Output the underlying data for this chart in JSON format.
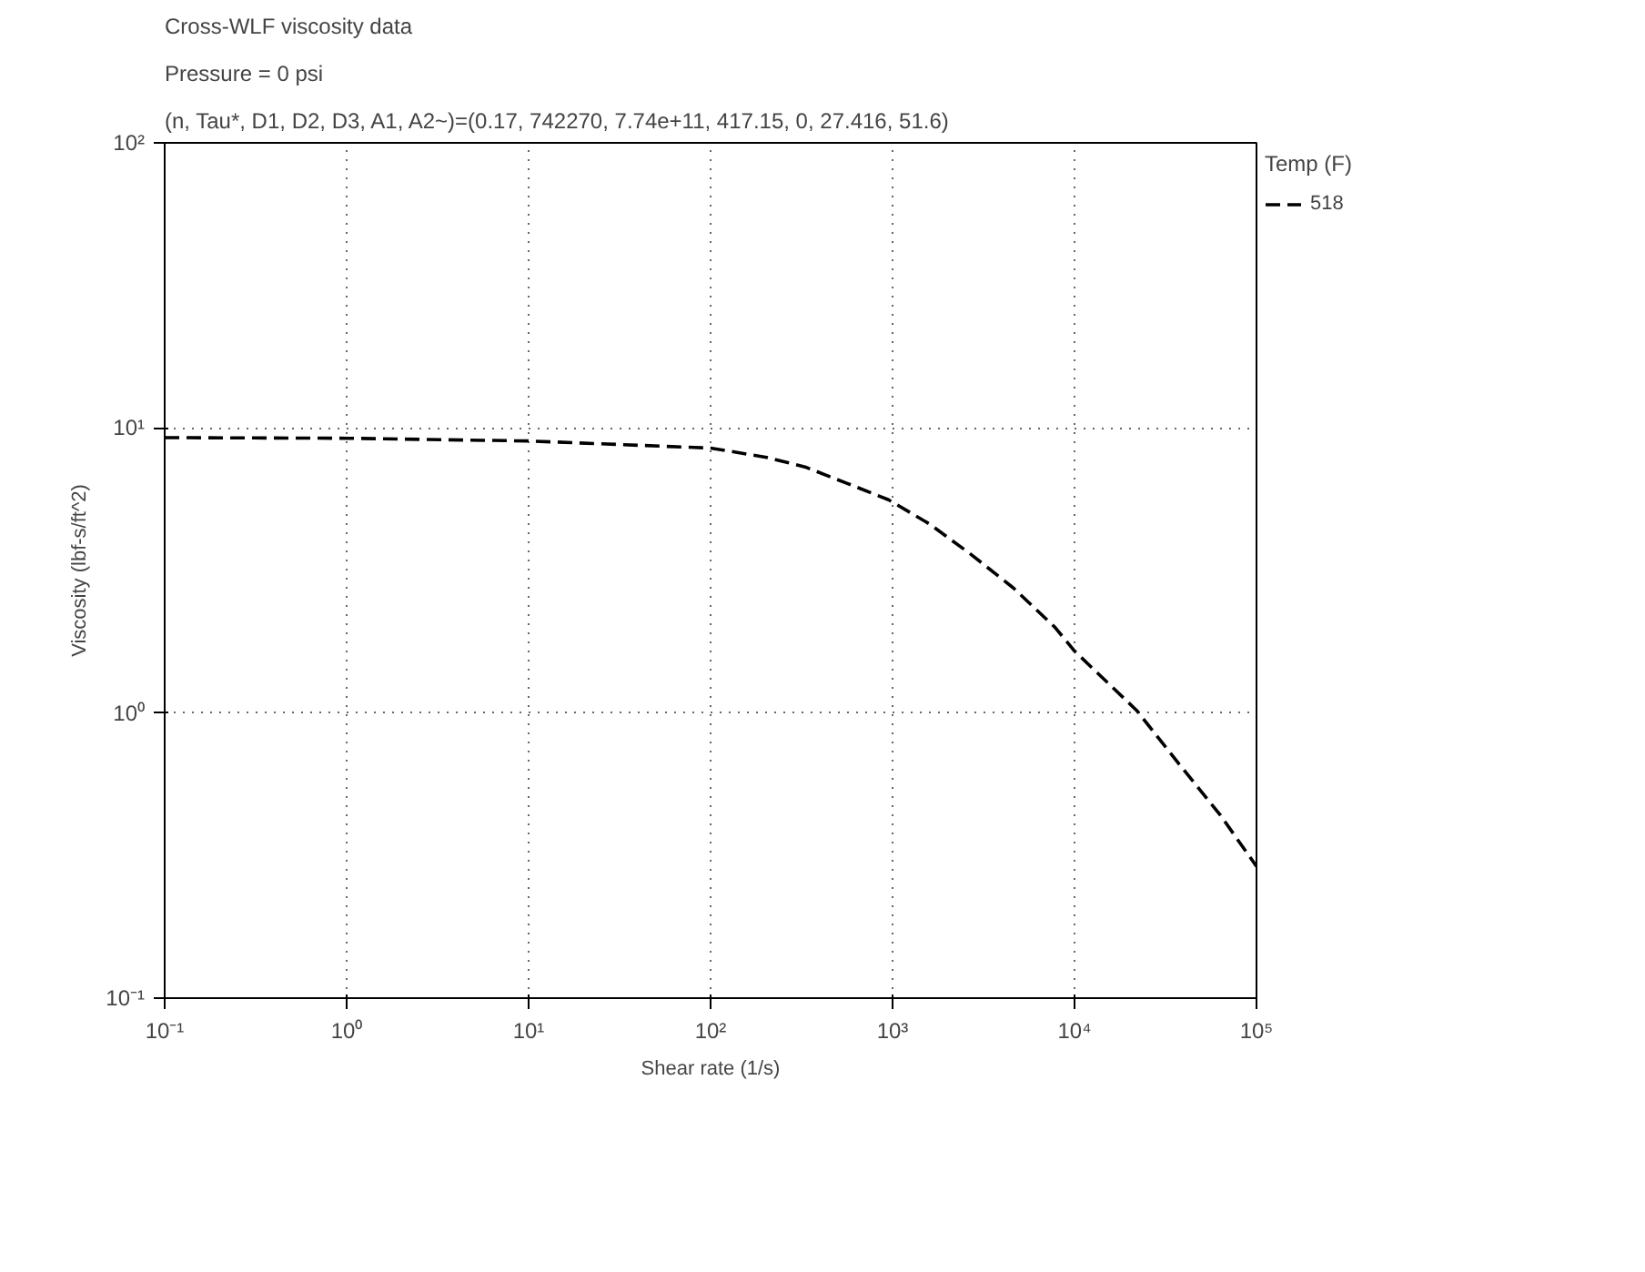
{
  "chart_data": {
    "type": "line",
    "title": "Cross-WLF viscosity data",
    "subtitle": "Pressure = 0 psi",
    "annotations": [
      "(n, Tau*, D1, D2, D3, A1, A2~)=(0.17, 742270, 7.74e+11, 417.15, 0, 27.416, 51.6)"
    ],
    "xlabel": "Shear rate (1/s)",
    "ylabel": "Viscosity (lbf-s/ft^2)",
    "legend_title": "Temp (F)",
    "log": "xy",
    "grid": true,
    "legend": "right",
    "line_style": "dashed",
    "marker": "none",
    "xlim": [
      0.1,
      100000
    ],
    "ylim": [
      0.1,
      100
    ],
    "xticks": [
      {
        "value": 0.1,
        "label": "10⁻¹"
      },
      {
        "value": 1,
        "label": "10⁰"
      },
      {
        "value": 10,
        "label": "10¹"
      },
      {
        "value": 100,
        "label": "10²"
      },
      {
        "value": 1000,
        "label": "10³"
      },
      {
        "value": 10000,
        "label": "10⁴"
      },
      {
        "value": 100000,
        "label": "10⁵"
      }
    ],
    "yticks": [
      {
        "value": 0.1,
        "label": "10⁻¹"
      },
      {
        "value": 1,
        "label": "10⁰"
      },
      {
        "value": 10,
        "label": "10¹"
      },
      {
        "value": 100,
        "label": "10²"
      }
    ],
    "series": [
      {
        "name": "518",
        "color": "#000000",
        "x": [
          0.1,
          1,
          10,
          100,
          200,
          330,
          560,
          950,
          1600,
          2700,
          4600,
          7800,
          10000,
          22000,
          37000,
          63000,
          100000
        ],
        "values": [
          9.25,
          9.2,
          9.0,
          8.5,
          7.9,
          7.3,
          6.4,
          5.6,
          4.6,
          3.6,
          2.75,
          2.0,
          1.65,
          1.02,
          0.67,
          0.44,
          0.29
        ]
      }
    ]
  }
}
